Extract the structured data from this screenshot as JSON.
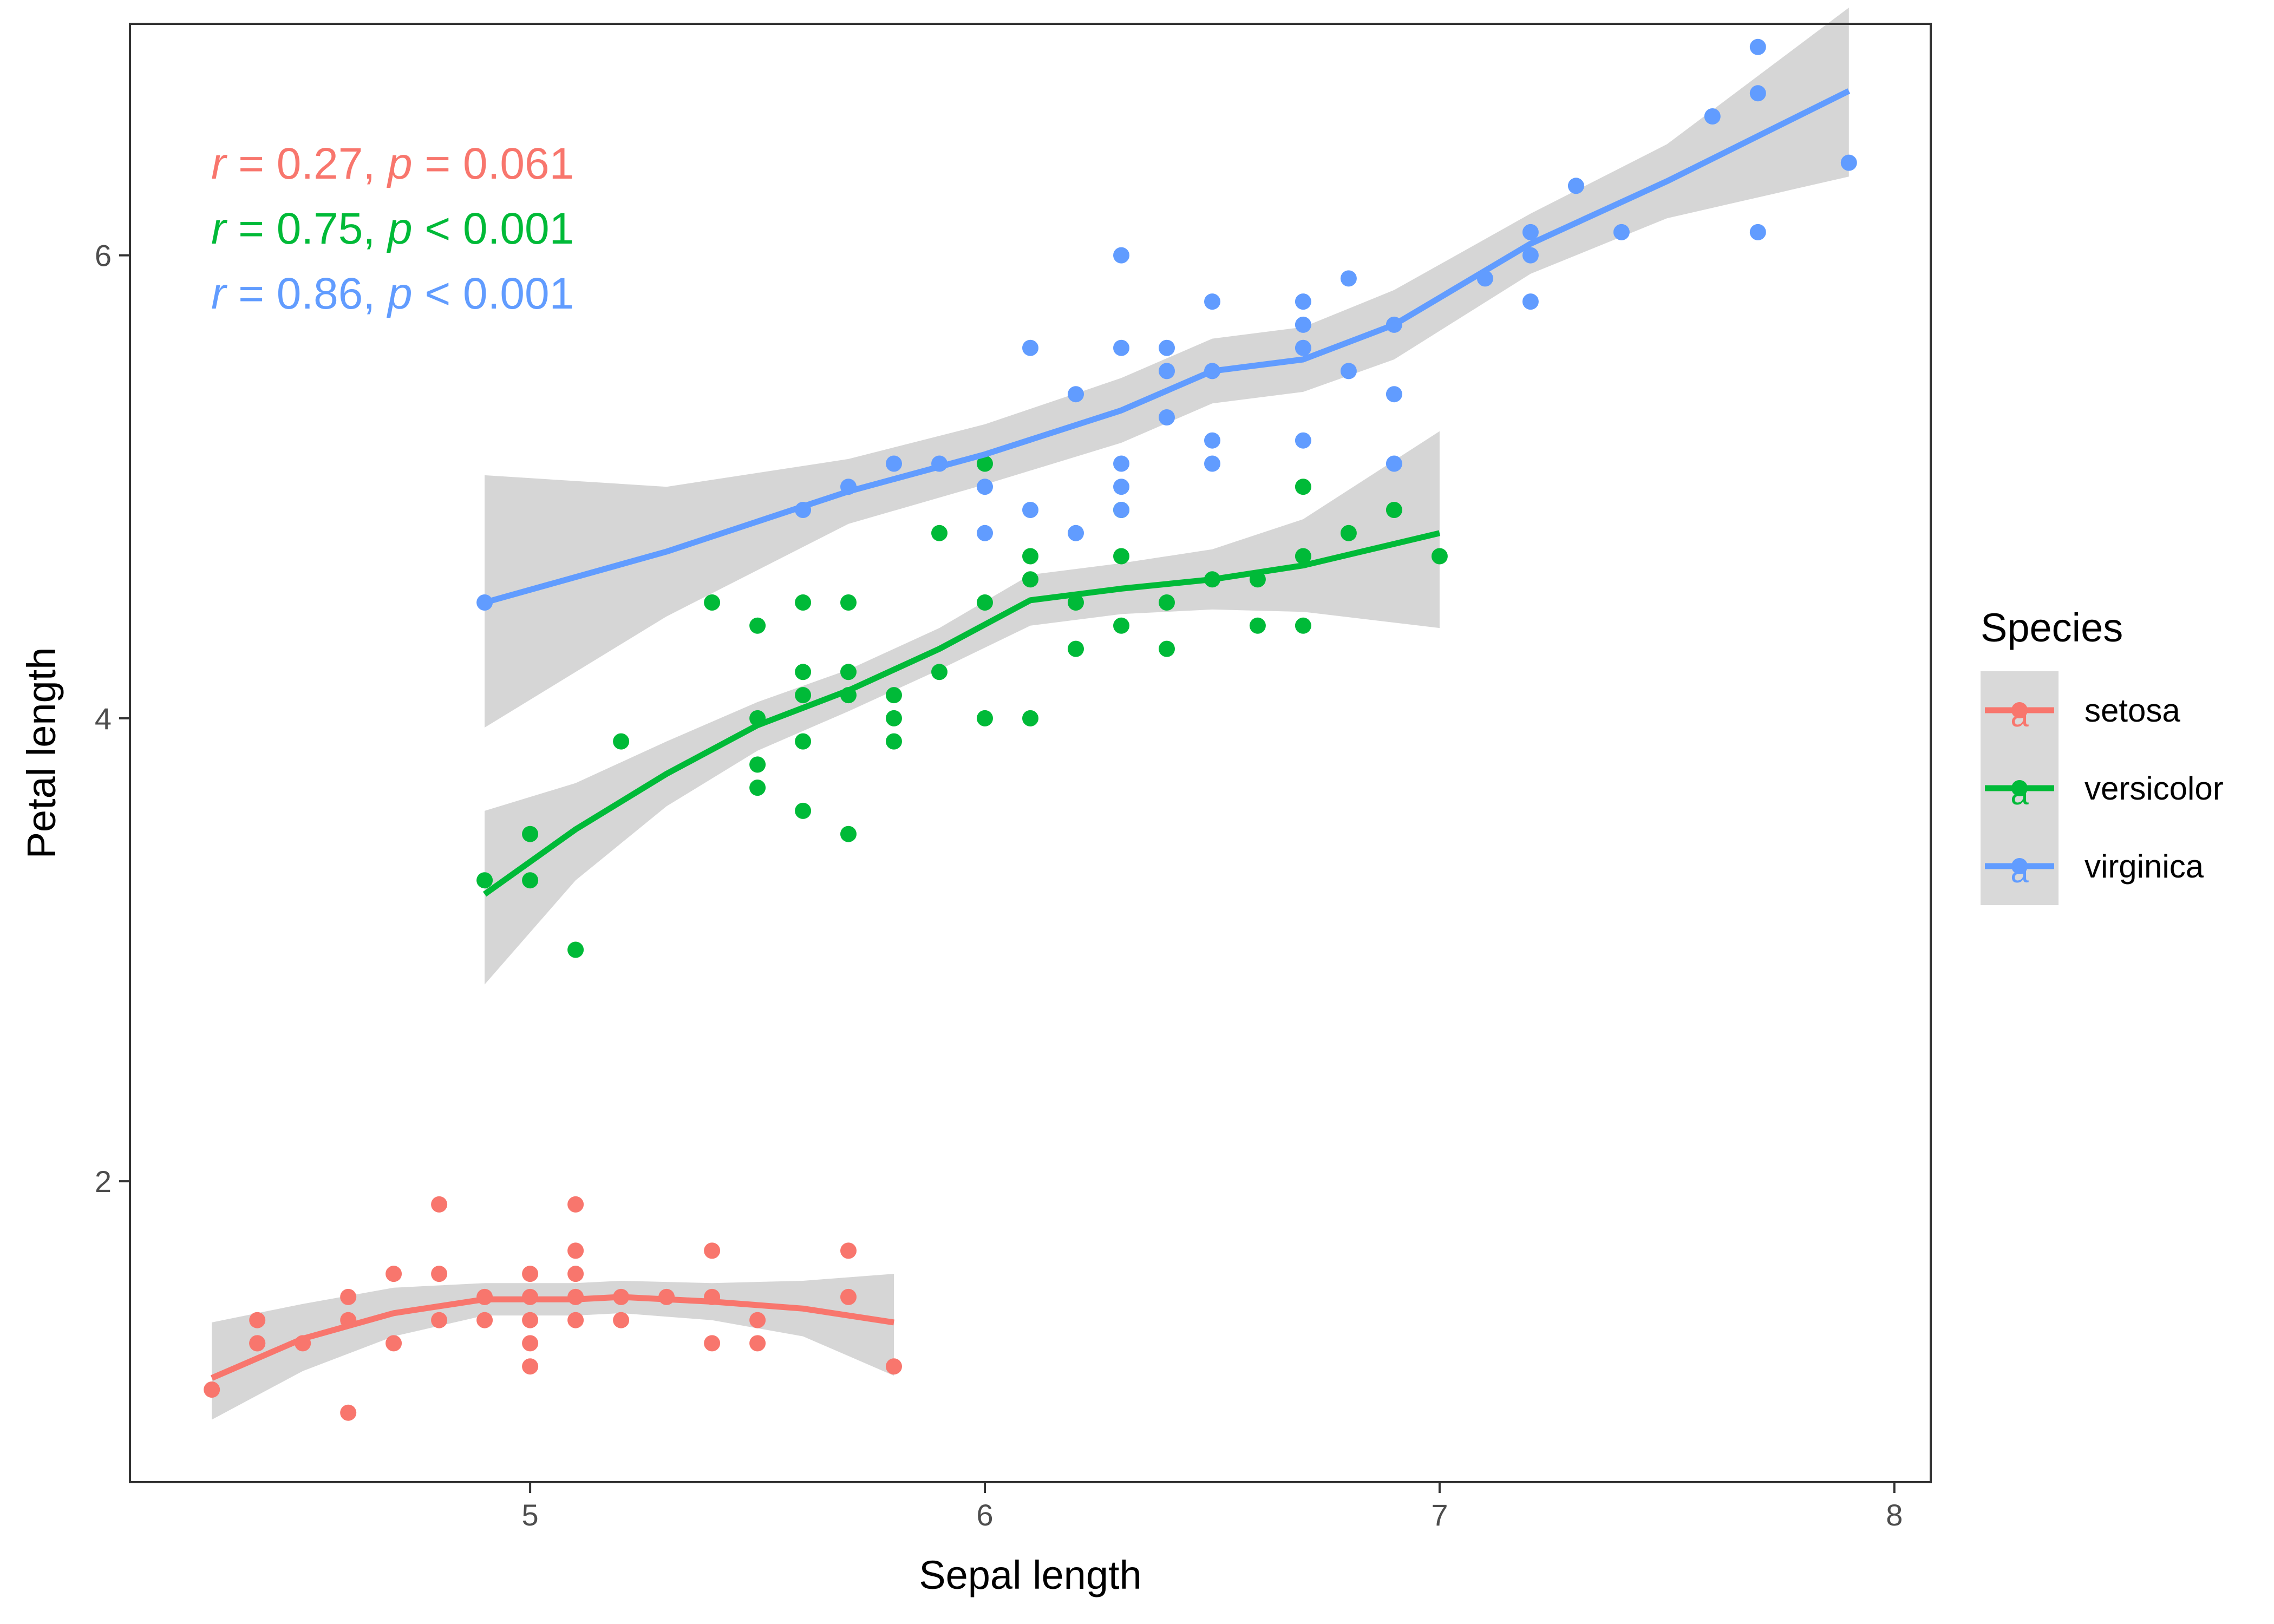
{
  "chart_data": {
    "type": "scatter",
    "title": "",
    "xlabel": "Sepal length",
    "ylabel": "Petal length",
    "xlim": [
      4.12,
      8.08
    ],
    "ylim": [
      0.7,
      7.0
    ],
    "x_ticks": [
      5,
      6,
      7,
      8
    ],
    "y_ticks": [
      2,
      4,
      6
    ],
    "grid": false,
    "smoother": "loess with confidence band",
    "legend": {
      "title": "Species",
      "placement": "right",
      "glyph": "a"
    },
    "annotations": [
      {
        "series": "setosa",
        "r_label": "r",
        "r_text": " = 0.27, ",
        "p_label": "p",
        "p_text": " = 0.061"
      },
      {
        "series": "versicolor",
        "r_label": "r",
        "r_text": " = 0.75, ",
        "p_label": "p",
        "p_text": " < 0.001"
      },
      {
        "series": "virginica",
        "r_label": "r",
        "r_text": " = 0.86, ",
        "p_label": "p",
        "p_text": " < 0.001"
      }
    ],
    "series": [
      {
        "name": "setosa",
        "color": "#F8766D",
        "points": [
          [
            4.3,
            1.1
          ],
          [
            4.4,
            1.4
          ],
          [
            4.4,
            1.3
          ],
          [
            4.4,
            1.3
          ],
          [
            4.5,
            1.3
          ],
          [
            4.6,
            1.5
          ],
          [
            4.6,
            1.4
          ],
          [
            4.6,
            1.0
          ],
          [
            4.7,
            1.6
          ],
          [
            4.7,
            1.3
          ],
          [
            4.8,
            1.9
          ],
          [
            4.8,
            1.6
          ],
          [
            4.8,
            1.4
          ],
          [
            4.9,
            1.5
          ],
          [
            4.9,
            1.4
          ],
          [
            5.0,
            1.6
          ],
          [
            5.0,
            1.5
          ],
          [
            5.0,
            1.4
          ],
          [
            5.0,
            1.3
          ],
          [
            5.0,
            1.2
          ],
          [
            5.1,
            1.9
          ],
          [
            5.1,
            1.7
          ],
          [
            5.1,
            1.6
          ],
          [
            5.1,
            1.5
          ],
          [
            5.1,
            1.4
          ],
          [
            5.2,
            1.5
          ],
          [
            5.2,
            1.4
          ],
          [
            5.3,
            1.5
          ],
          [
            5.4,
            1.7
          ],
          [
            5.4,
            1.5
          ],
          [
            5.4,
            1.3
          ],
          [
            5.5,
            1.4
          ],
          [
            5.5,
            1.3
          ],
          [
            5.7,
            1.7
          ],
          [
            5.7,
            1.5
          ],
          [
            5.8,
            1.2
          ]
        ],
        "smooth": [
          [
            4.3,
            1.15
          ],
          [
            4.5,
            1.32
          ],
          [
            4.7,
            1.43
          ],
          [
            4.9,
            1.49
          ],
          [
            5.1,
            1.49
          ],
          [
            5.2,
            1.5
          ],
          [
            5.4,
            1.48
          ],
          [
            5.6,
            1.45
          ],
          [
            5.8,
            1.39
          ]
        ],
        "band_upper": [
          [
            4.3,
            1.39
          ],
          [
            4.5,
            1.47
          ],
          [
            4.7,
            1.54
          ],
          [
            4.9,
            1.56
          ],
          [
            5.1,
            1.56
          ],
          [
            5.2,
            1.57
          ],
          [
            5.4,
            1.56
          ],
          [
            5.6,
            1.57
          ],
          [
            5.8,
            1.6
          ]
        ],
        "band_lower": [
          [
            4.3,
            0.97
          ],
          [
            4.5,
            1.18
          ],
          [
            4.7,
            1.33
          ],
          [
            4.9,
            1.42
          ],
          [
            5.1,
            1.42
          ],
          [
            5.2,
            1.43
          ],
          [
            5.4,
            1.4
          ],
          [
            5.6,
            1.33
          ],
          [
            5.8,
            1.16
          ]
        ]
      },
      {
        "name": "versicolor",
        "color": "#00BA38",
        "points": [
          [
            4.9,
            3.3
          ],
          [
            5.0,
            3.5
          ],
          [
            5.0,
            3.3
          ],
          [
            5.1,
            3.0
          ],
          [
            5.2,
            3.9
          ],
          [
            5.4,
            4.5
          ],
          [
            5.5,
            4.4
          ],
          [
            5.5,
            4.0
          ],
          [
            5.5,
            3.8
          ],
          [
            5.5,
            3.7
          ],
          [
            5.6,
            4.5
          ],
          [
            5.6,
            4.2
          ],
          [
            5.6,
            4.1
          ],
          [
            5.6,
            3.9
          ],
          [
            5.6,
            3.6
          ],
          [
            5.7,
            4.5
          ],
          [
            5.7,
            4.2
          ],
          [
            5.7,
            4.1
          ],
          [
            5.7,
            3.5
          ],
          [
            5.8,
            4.1
          ],
          [
            5.8,
            4.0
          ],
          [
            5.8,
            3.9
          ],
          [
            5.9,
            4.8
          ],
          [
            5.9,
            4.2
          ],
          [
            6.0,
            5.1
          ],
          [
            6.0,
            4.5
          ],
          [
            6.0,
            4.0
          ],
          [
            6.1,
            4.7
          ],
          [
            6.1,
            4.6
          ],
          [
            6.1,
            4.0
          ],
          [
            6.2,
            4.5
          ],
          [
            6.2,
            4.3
          ],
          [
            6.3,
            4.9
          ],
          [
            6.3,
            4.7
          ],
          [
            6.3,
            4.4
          ],
          [
            6.4,
            4.5
          ],
          [
            6.4,
            4.3
          ],
          [
            6.5,
            4.6
          ],
          [
            6.6,
            4.6
          ],
          [
            6.6,
            4.4
          ],
          [
            6.7,
            5.0
          ],
          [
            6.7,
            4.7
          ],
          [
            6.7,
            4.4
          ],
          [
            6.8,
            4.8
          ],
          [
            6.9,
            4.9
          ],
          [
            7.0,
            4.7
          ]
        ],
        "smooth": [
          [
            4.9,
            3.24
          ],
          [
            5.1,
            3.52
          ],
          [
            5.3,
            3.76
          ],
          [
            5.5,
            3.97
          ],
          [
            5.7,
            4.12
          ],
          [
            5.9,
            4.3
          ],
          [
            6.1,
            4.51
          ],
          [
            6.3,
            4.56
          ],
          [
            6.5,
            4.6
          ],
          [
            6.7,
            4.66
          ],
          [
            7.0,
            4.8
          ]
        ],
        "band_upper": [
          [
            4.9,
            3.6
          ],
          [
            5.1,
            3.72
          ],
          [
            5.3,
            3.9
          ],
          [
            5.5,
            4.07
          ],
          [
            5.7,
            4.21
          ],
          [
            5.9,
            4.39
          ],
          [
            6.1,
            4.62
          ],
          [
            6.3,
            4.67
          ],
          [
            6.5,
            4.73
          ],
          [
            6.7,
            4.86
          ],
          [
            7.0,
            5.24
          ]
        ],
        "band_lower": [
          [
            4.9,
            2.85
          ],
          [
            5.1,
            3.3
          ],
          [
            5.3,
            3.62
          ],
          [
            5.5,
            3.86
          ],
          [
            5.7,
            4.03
          ],
          [
            5.9,
            4.21
          ],
          [
            6.1,
            4.4
          ],
          [
            6.3,
            4.45
          ],
          [
            6.5,
            4.47
          ],
          [
            6.7,
            4.46
          ],
          [
            7.0,
            4.39
          ]
        ]
      },
      {
        "name": "virginica",
        "color": "#619CFF",
        "points": [
          [
            4.9,
            4.5
          ],
          [
            5.6,
            4.9
          ],
          [
            5.7,
            5.0
          ],
          [
            5.8,
            5.1
          ],
          [
            5.9,
            5.1
          ],
          [
            6.0,
            5.0
          ],
          [
            6.0,
            4.8
          ],
          [
            6.1,
            5.6
          ],
          [
            6.1,
            4.9
          ],
          [
            6.2,
            5.4
          ],
          [
            6.2,
            4.8
          ],
          [
            6.3,
            6.0
          ],
          [
            6.3,
            5.6
          ],
          [
            6.3,
            5.1
          ],
          [
            6.3,
            5.0
          ],
          [
            6.3,
            4.9
          ],
          [
            6.4,
            5.6
          ],
          [
            6.4,
            5.5
          ],
          [
            6.4,
            5.3
          ],
          [
            6.5,
            5.8
          ],
          [
            6.5,
            5.5
          ],
          [
            6.5,
            5.2
          ],
          [
            6.5,
            5.1
          ],
          [
            6.7,
            5.8
          ],
          [
            6.7,
            5.7
          ],
          [
            6.7,
            5.6
          ],
          [
            6.7,
            5.2
          ],
          [
            6.8,
            5.9
          ],
          [
            6.8,
            5.5
          ],
          [
            6.9,
            5.7
          ],
          [
            6.9,
            5.4
          ],
          [
            6.9,
            5.1
          ],
          [
            7.1,
            5.9
          ],
          [
            7.2,
            6.1
          ],
          [
            7.2,
            6.0
          ],
          [
            7.2,
            5.8
          ],
          [
            7.3,
            6.3
          ],
          [
            7.4,
            6.1
          ],
          [
            7.6,
            6.6
          ],
          [
            7.7,
            6.9
          ],
          [
            7.7,
            6.7
          ],
          [
            7.7,
            6.1
          ],
          [
            7.9,
            6.4
          ]
        ],
        "smooth": [
          [
            4.9,
            4.5
          ],
          [
            5.3,
            4.72
          ],
          [
            5.7,
            4.98
          ],
          [
            6.0,
            5.14
          ],
          [
            6.3,
            5.33
          ],
          [
            6.5,
            5.5
          ],
          [
            6.7,
            5.55
          ],
          [
            6.9,
            5.7
          ],
          [
            7.2,
            6.05
          ],
          [
            7.5,
            6.32
          ],
          [
            7.9,
            6.71
          ]
        ],
        "band_upper": [
          [
            4.9,
            5.05
          ],
          [
            5.3,
            5.0
          ],
          [
            5.7,
            5.12
          ],
          [
            6.0,
            5.27
          ],
          [
            6.3,
            5.47
          ],
          [
            6.5,
            5.64
          ],
          [
            6.7,
            5.69
          ],
          [
            6.9,
            5.85
          ],
          [
            7.2,
            6.18
          ],
          [
            7.5,
            6.48
          ],
          [
            7.9,
            7.07
          ]
        ],
        "band_lower": [
          [
            4.9,
            3.96
          ],
          [
            5.3,
            4.44
          ],
          [
            5.7,
            4.84
          ],
          [
            6.0,
            5.01
          ],
          [
            6.3,
            5.19
          ],
          [
            6.5,
            5.36
          ],
          [
            6.7,
            5.41
          ],
          [
            6.9,
            5.55
          ],
          [
            7.2,
            5.92
          ],
          [
            7.5,
            6.16
          ],
          [
            7.9,
            6.34
          ]
        ]
      }
    ]
  }
}
